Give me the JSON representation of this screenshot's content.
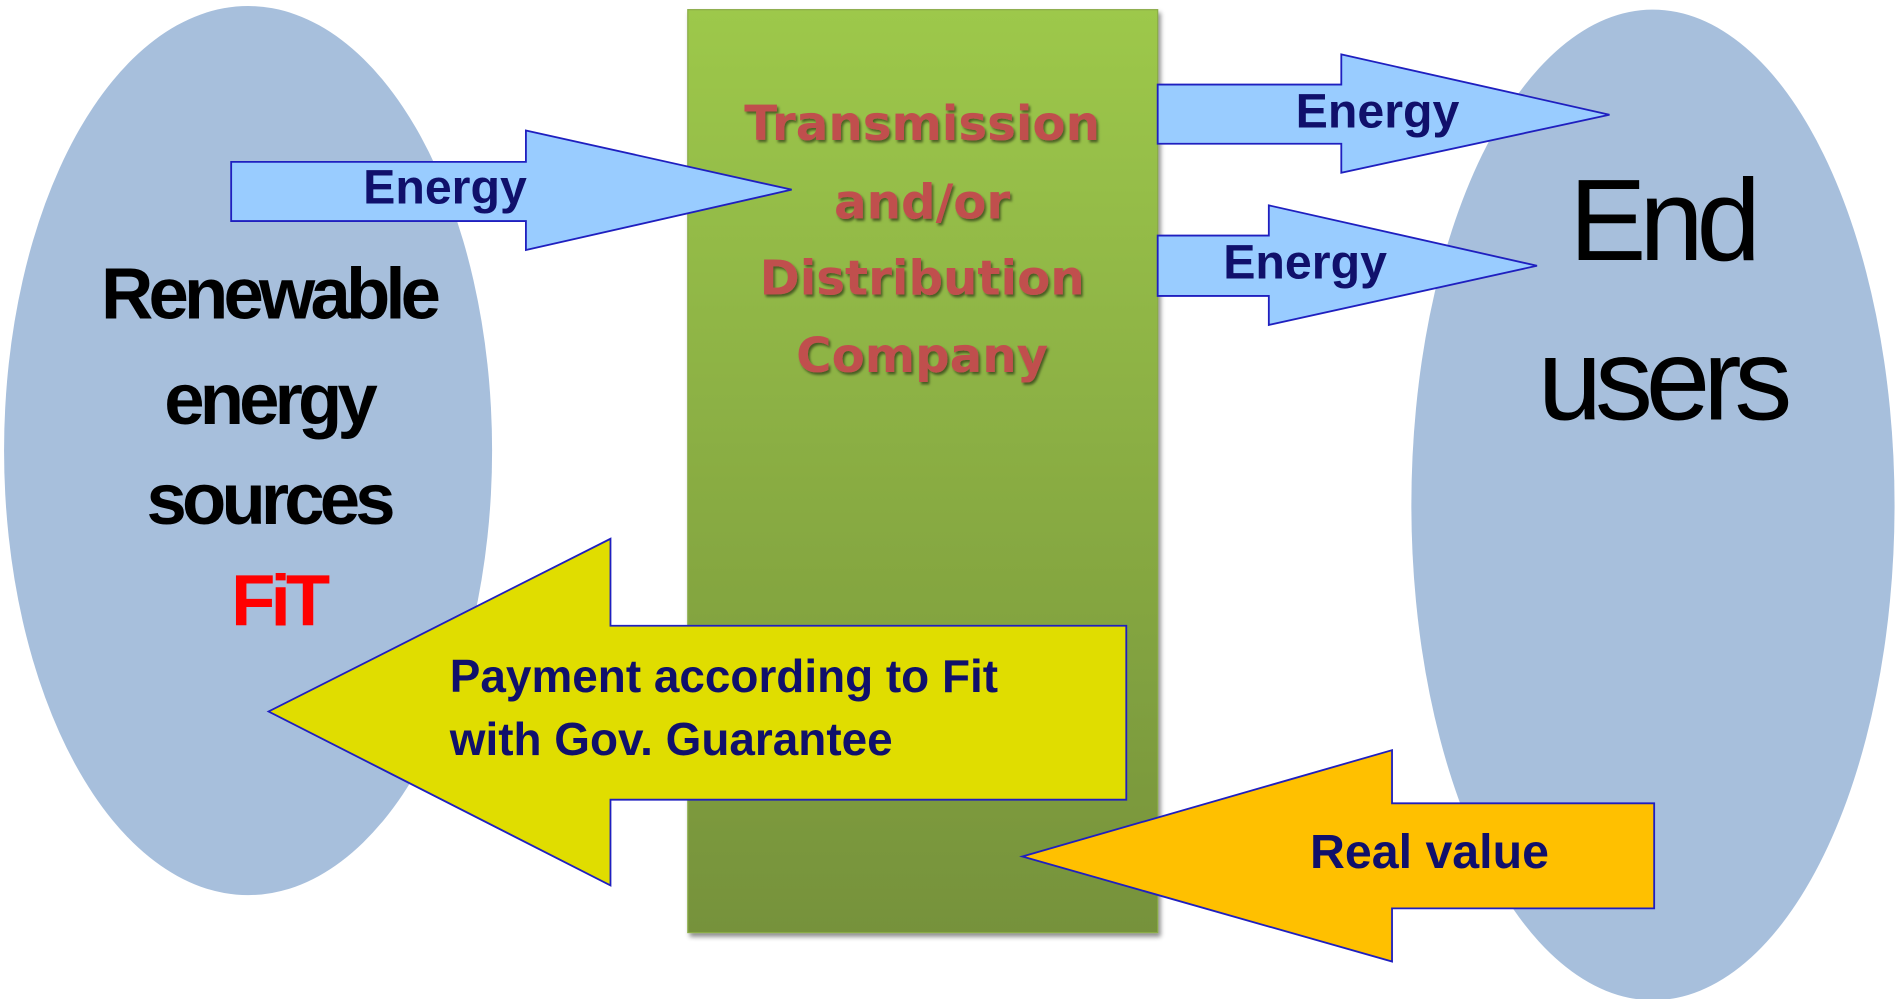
{
  "sources": {
    "lines": [
      "Renewable",
      "energy",
      "sources"
    ],
    "tag": "FiT"
  },
  "users": {
    "lines": [
      "End",
      "users"
    ]
  },
  "company": {
    "lines": [
      "Transmission",
      "and/or",
      "Distribution",
      "Company"
    ]
  },
  "arrows": [
    {
      "label": "Energy"
    },
    {
      "label": "Energy"
    },
    {
      "label": "Energy"
    },
    {
      "lines": [
        "Payment according to Fit",
        "with Gov. Guarantee"
      ]
    },
    {
      "label": "Real value"
    }
  ]
}
